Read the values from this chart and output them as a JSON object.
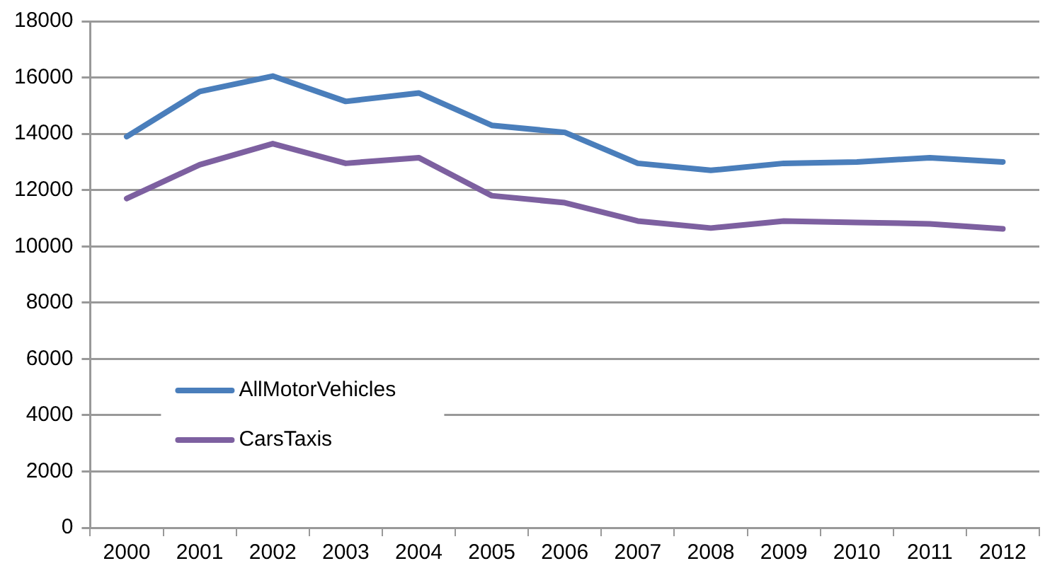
{
  "chart_data": {
    "type": "line",
    "categories": [
      "2000",
      "2001",
      "2002",
      "2003",
      "2004",
      "2005",
      "2006",
      "2007",
      "2008",
      "2009",
      "2010",
      "2011",
      "2012"
    ],
    "series": [
      {
        "name": "AllMotorVehicles",
        "color": "#4a7ebb",
        "values": [
          13900,
          15500,
          16050,
          15150,
          15450,
          14300,
          14050,
          12950,
          12700,
          12950,
          13000,
          13150,
          13000
        ]
      },
      {
        "name": "CarsTaxis",
        "color": "#7d60a0",
        "values": [
          11700,
          12900,
          13650,
          12950,
          13150,
          11800,
          11550,
          10900,
          10650,
          10900,
          10850,
          10800,
          10620
        ]
      }
    ],
    "ylim": [
      0,
      18000
    ],
    "yticks": [
      0,
      2000,
      4000,
      6000,
      8000,
      10000,
      12000,
      14000,
      16000,
      18000
    ],
    "grid": "y",
    "legend": "bottom left",
    "marker": "none",
    "line_style": "solid"
  }
}
